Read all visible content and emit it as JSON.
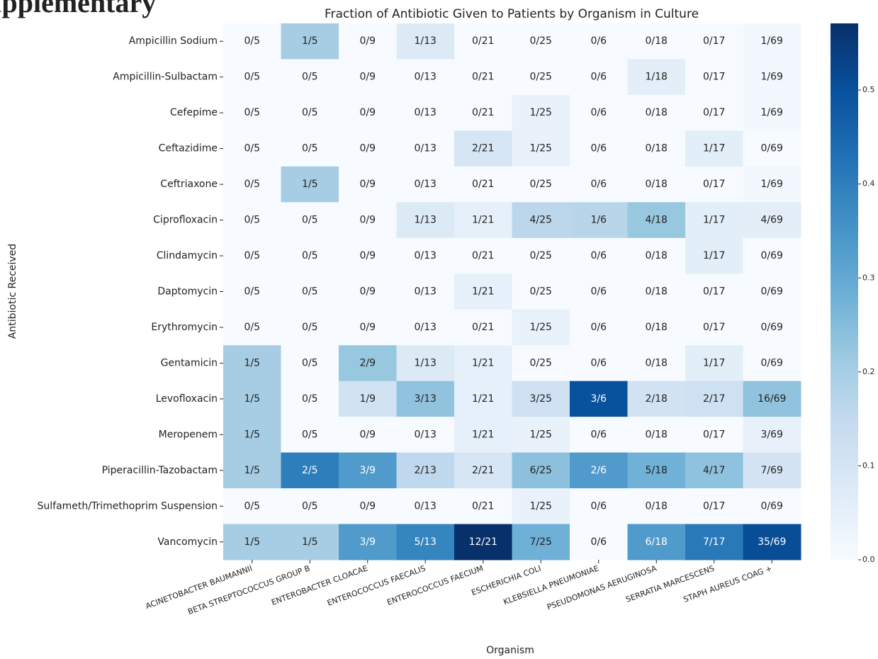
{
  "page_heading": "Supplementary",
  "chart_data": {
    "type": "heatmap",
    "title": "Fraction of Antibiotic Given to Patients by Organism in Culture",
    "x_label": "Organism",
    "y_label": "Antibiotic Received",
    "x": [
      "ACINETOBACTER BAUMANNII",
      "BETA STREPTOCOCCUS GROUP B",
      "ENTEROBACTER CLOACAE",
      "ENTEROCOCCUS FAECALIS",
      "ENTEROCOCCUS FAECIUM",
      "ESCHERICHIA COLI",
      "KLEBSIELLA PNEUMONIAE",
      "PSEUDOMONAS AERUGINOSA",
      "SERRATIA MARCESCENS",
      "STAPH AUREUS COAG +"
    ],
    "y": [
      "Ampicillin Sodium",
      "Ampicillin-Sulbactam",
      "Cefepime",
      "Ceftazidime",
      "Ceftriaxone",
      "Ciprofloxacin",
      "Clindamycin",
      "Daptomycin",
      "Erythromycin",
      "Gentamicin",
      "Levofloxacin",
      "Meropenem",
      "Piperacillin-Tazobactam",
      "Sulfameth/Trimethoprim Suspension",
      "Vancomycin"
    ],
    "values": [
      [
        0,
        0.2,
        0,
        0.077,
        0,
        0,
        0,
        0,
        0,
        0.014
      ],
      [
        0,
        0,
        0,
        0,
        0,
        0,
        0,
        0.056,
        0,
        0.014
      ],
      [
        0,
        0,
        0,
        0,
        0,
        0.04,
        0,
        0,
        0,
        0.014
      ],
      [
        0,
        0,
        0,
        0,
        0.095,
        0.04,
        0,
        0,
        0.059,
        0
      ],
      [
        0,
        0.2,
        0,
        0,
        0,
        0,
        0,
        0,
        0,
        0.014
      ],
      [
        0,
        0,
        0,
        0.077,
        0.048,
        0.16,
        0.167,
        0.222,
        0.059,
        0.058
      ],
      [
        0,
        0,
        0,
        0,
        0,
        0,
        0,
        0,
        0.059,
        0
      ],
      [
        0,
        0,
        0,
        0,
        0.048,
        0,
        0,
        0,
        0,
        0
      ],
      [
        0,
        0,
        0,
        0,
        0,
        0.04,
        0,
        0,
        0,
        0
      ],
      [
        0.2,
        0,
        0.222,
        0.077,
        0.048,
        0,
        0,
        0,
        0.059,
        0
      ],
      [
        0.2,
        0,
        0.111,
        0.231,
        0.048,
        0.12,
        0.5,
        0.111,
        0.118,
        0.232
      ],
      [
        0.2,
        0,
        0,
        0,
        0.048,
        0.04,
        0,
        0,
        0,
        0.043
      ],
      [
        0.2,
        0.4,
        0.333,
        0.154,
        0.095,
        0.24,
        0.333,
        0.278,
        0.235,
        0.101
      ],
      [
        0,
        0,
        0,
        0,
        0,
        0.04,
        0,
        0,
        0,
        0
      ],
      [
        0.2,
        0.2,
        0.333,
        0.385,
        0.571,
        0.28,
        0,
        0.333,
        0.412,
        0.507
      ]
    ],
    "value_labels": [
      [
        "0/5",
        "1/5",
        "0/9",
        "1/13",
        "0/21",
        "0/25",
        "0/6",
        "0/18",
        "0/17",
        "1/69"
      ],
      [
        "0/5",
        "0/5",
        "0/9",
        "0/13",
        "0/21",
        "0/25",
        "0/6",
        "1/18",
        "0/17",
        "1/69"
      ],
      [
        "0/5",
        "0/5",
        "0/9",
        "0/13",
        "0/21",
        "1/25",
        "0/6",
        "0/18",
        "0/17",
        "1/69"
      ],
      [
        "0/5",
        "0/5",
        "0/9",
        "0/13",
        "2/21",
        "1/25",
        "0/6",
        "0/18",
        "1/17",
        "0/69"
      ],
      [
        "0/5",
        "1/5",
        "0/9",
        "0/13",
        "0/21",
        "0/25",
        "0/6",
        "0/18",
        "0/17",
        "1/69"
      ],
      [
        "0/5",
        "0/5",
        "0/9",
        "1/13",
        "1/21",
        "4/25",
        "1/6",
        "4/18",
        "1/17",
        "4/69"
      ],
      [
        "0/5",
        "0/5",
        "0/9",
        "0/13",
        "0/21",
        "0/25",
        "0/6",
        "0/18",
        "1/17",
        "0/69"
      ],
      [
        "0/5",
        "0/5",
        "0/9",
        "0/13",
        "1/21",
        "0/25",
        "0/6",
        "0/18",
        "0/17",
        "0/69"
      ],
      [
        "0/5",
        "0/5",
        "0/9",
        "0/13",
        "0/21",
        "1/25",
        "0/6",
        "0/18",
        "0/17",
        "0/69"
      ],
      [
        "1/5",
        "0/5",
        "2/9",
        "1/13",
        "1/21",
        "0/25",
        "0/6",
        "0/18",
        "1/17",
        "0/69"
      ],
      [
        "1/5",
        "0/5",
        "1/9",
        "3/13",
        "1/21",
        "3/25",
        "3/6",
        "2/18",
        "2/17",
        "16/69"
      ],
      [
        "1/5",
        "0/5",
        "0/9",
        "0/13",
        "1/21",
        "1/25",
        "0/6",
        "0/18",
        "0/17",
        "3/69"
      ],
      [
        "1/5",
        "2/5",
        "3/9",
        "2/13",
        "2/21",
        "6/25",
        "2/6",
        "5/18",
        "4/17",
        "7/69"
      ],
      [
        "0/5",
        "0/5",
        "0/9",
        "0/13",
        "0/21",
        "1/25",
        "0/6",
        "0/18",
        "0/17",
        "0/69"
      ],
      [
        "1/5",
        "1/5",
        "3/9",
        "5/13",
        "12/21",
        "7/25",
        "0/6",
        "6/18",
        "7/17",
        "35/69"
      ]
    ],
    "colormap": "Blues",
    "clim": [
      0,
      0.571
    ],
    "cticks": [
      {
        "value": 0,
        "label": "0.0"
      },
      0.1,
      0.2,
      0.3,
      0.4,
      0.5
    ]
  }
}
